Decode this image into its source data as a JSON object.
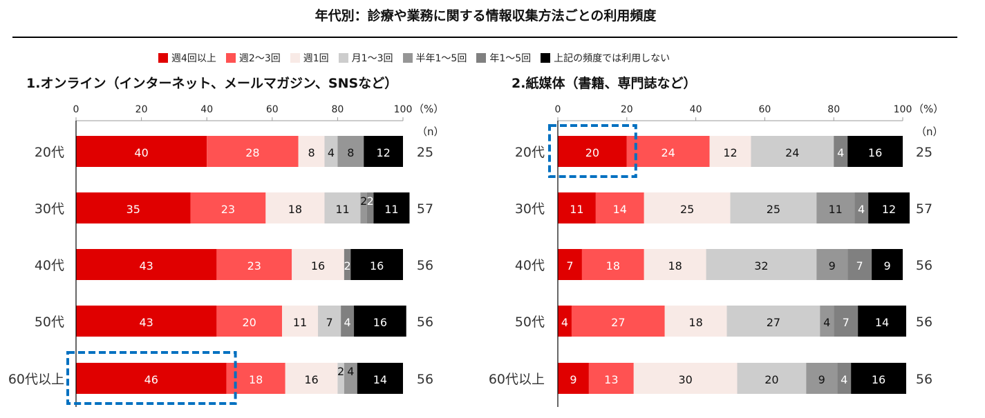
{
  "title": "年代別：診療や業務に関する情報収集方法ごとの利用頻度",
  "legend": [
    {
      "label": "週4回以上",
      "color": "#E00000"
    },
    {
      "label": "週2～3回",
      "color": "#FF5252"
    },
    {
      "label": "週1回",
      "color": "#F8EAE6"
    },
    {
      "label": "月1～3回",
      "color": "#CDCDCD"
    },
    {
      "label": "半年1～5回",
      "color": "#969696"
    },
    {
      "label": "年1～5回",
      "color": "#808080"
    },
    {
      "label": "上記の頻度では利用しない",
      "color": "#000000"
    }
  ],
  "highlight_color": "#0070C0",
  "chart_data": [
    {
      "type": "bar",
      "orientation": "horizontal",
      "stacked": true,
      "title": "1.オンライン（インターネット、メールマガジン、SNSなど）",
      "xlim": [
        0,
        100
      ],
      "xticks": [
        "0",
        "20",
        "40",
        "60",
        "80",
        "100"
      ],
      "xunit": "（%）",
      "n_header": "（n）",
      "categories": [
        "20代",
        "30代",
        "40代",
        "50代",
        "60代以上"
      ],
      "n": [
        "25",
        "57",
        "56",
        "56",
        "56"
      ],
      "series": [
        {
          "name": "週4回以上",
          "values": [
            40,
            35,
            43,
            43,
            46
          ]
        },
        {
          "name": "週2～3回",
          "values": [
            28,
            23,
            23,
            20,
            18
          ]
        },
        {
          "name": "週1回",
          "values": [
            8,
            18,
            16,
            11,
            16
          ]
        },
        {
          "name": "月1～3回",
          "values": [
            4,
            11,
            0,
            7,
            2
          ]
        },
        {
          "name": "半年1～5回",
          "values": [
            8,
            2,
            0,
            0,
            4
          ]
        },
        {
          "name": "年1～5回",
          "values": [
            0,
            2,
            2,
            4,
            0
          ]
        },
        {
          "name": "上記の頻度では利用しない",
          "values": [
            12,
            11,
            16,
            16,
            14
          ]
        }
      ],
      "highlight": {
        "category": "60代以上",
        "series": "週4回以上"
      }
    },
    {
      "type": "bar",
      "orientation": "horizontal",
      "stacked": true,
      "title": "2.紙媒体（書籍、専門誌など）",
      "xlim": [
        0,
        100
      ],
      "xticks": [
        "0",
        "20",
        "40",
        "60",
        "80",
        "100"
      ],
      "xunit": "（%）",
      "n_header": "（n）",
      "categories": [
        "20代",
        "30代",
        "40代",
        "50代",
        "60代以上"
      ],
      "n": [
        "25",
        "57",
        "56",
        "56",
        "56"
      ],
      "series": [
        {
          "name": "週4回以上",
          "values": [
            20,
            11,
            7,
            4,
            9
          ]
        },
        {
          "name": "週2～3回",
          "values": [
            24,
            14,
            18,
            27,
            13
          ]
        },
        {
          "name": "週1回",
          "values": [
            12,
            25,
            18,
            18,
            30
          ]
        },
        {
          "name": "月1～3回",
          "values": [
            24,
            25,
            32,
            27,
            20
          ]
        },
        {
          "name": "半年1～5回",
          "values": [
            0,
            11,
            9,
            4,
            9
          ]
        },
        {
          "name": "年1～5回",
          "values": [
            4,
            4,
            7,
            7,
            4
          ]
        },
        {
          "name": "上記の頻度では利用しない",
          "values": [
            16,
            12,
            9,
            14,
            16
          ]
        }
      ],
      "highlight": {
        "category": "20代",
        "series": "週4回以上"
      }
    }
  ]
}
